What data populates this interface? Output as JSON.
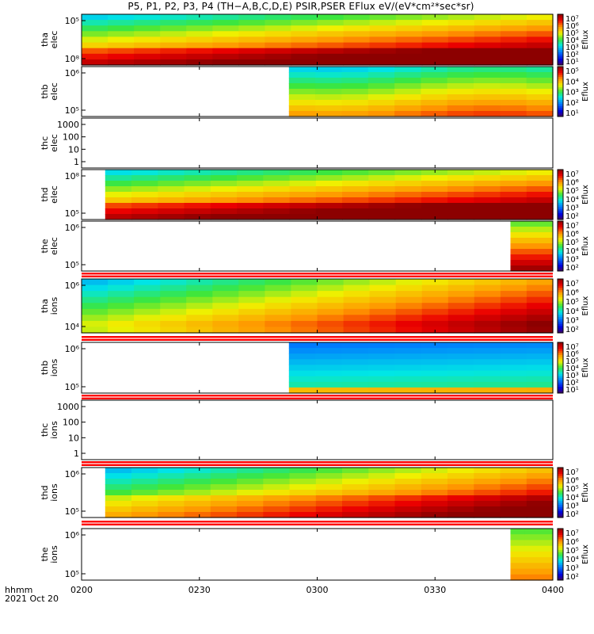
{
  "title": "P5, P1, P2, P3, P4 (TH−A,B,C,D,E) PSIR,PSER EFlux eV/(eV*cm²*sec*sr)",
  "colorbar_label": "Eflux",
  "x_axis": {
    "row1_label": "hhmm",
    "row2_label": "2021 Oct 20",
    "ticks": [
      "0200",
      "0230",
      "0300",
      "0330",
      "0400"
    ]
  },
  "chart_data": [
    {
      "type": "heatmap",
      "name": "tha elec",
      "ylabel": [
        "tha",
        "elec"
      ],
      "yscale": "log",
      "yticks": [
        "10⁵",
        "10⁸"
      ],
      "cbar_ticks": [
        "10⁷",
        "10⁶",
        "10⁵",
        "10⁴",
        "10³",
        "10²",
        "10¹"
      ],
      "data_start_frac": 0.0,
      "data_end_frac": 1.0,
      "trend": "increasing_to_red",
      "flux_range": [
        10.0,
        10000000.0
      ]
    },
    {
      "type": "heatmap",
      "name": "thb elec",
      "ylabel": [
        "thb",
        "elec"
      ],
      "yscale": "log",
      "yticks": [
        "10⁶",
        "10⁵"
      ],
      "cbar_ticks": [
        "10⁵",
        "10⁴",
        "10³",
        "10²",
        "10¹"
      ],
      "data_start_frac": 0.44,
      "data_end_frac": 1.0,
      "trend": "cyan_green_top_orange_bottom",
      "flux_range": [
        10.0,
        100000.0
      ]
    },
    {
      "type": "heatmap",
      "name": "thc elec",
      "ylabel": [
        "thc",
        "elec"
      ],
      "yscale": "log",
      "yticks": [
        "1000",
        "100",
        "10",
        "1"
      ],
      "cbar_ticks": [],
      "empty": true
    },
    {
      "type": "heatmap",
      "name": "thd elec",
      "ylabel": [
        "thd",
        "elec"
      ],
      "yscale": "log",
      "yticks": [
        "10⁸",
        "10⁵"
      ],
      "cbar_ticks": [
        "10⁷",
        "10⁶",
        "10⁵",
        "10⁴",
        "10³",
        "10²"
      ],
      "data_start_frac": 0.05,
      "data_end_frac": 1.0,
      "trend": "increasing_to_red",
      "flux_range": [
        100.0,
        10000000.0
      ]
    },
    {
      "type": "heatmap",
      "name": "the elec",
      "ylabel": [
        "the",
        "elec"
      ],
      "yscale": "log",
      "yticks": [
        "10⁶",
        "10⁵"
      ],
      "cbar_ticks": [
        "10⁷",
        "10⁶",
        "10⁵",
        "10⁴",
        "10³",
        "10²"
      ],
      "data_start_frac": 0.91,
      "data_end_frac": 1.0,
      "trend": "red",
      "flux_range": [
        100.0,
        10000000.0
      ]
    },
    {
      "type": "heatmap",
      "name": "tha ions",
      "ylabel": [
        "tha",
        "ions"
      ],
      "yscale": "log",
      "yticks": [
        "10⁶",
        "10⁴"
      ],
      "cbar_ticks": [
        "10⁷",
        "10⁶",
        "10⁵",
        "10⁴",
        "10³",
        "10²"
      ],
      "data_start_frac": 0.0,
      "data_end_frac": 1.0,
      "trend": "green_to_red",
      "flux_range": [
        100.0,
        10000000.0
      ]
    },
    {
      "type": "heatmap",
      "name": "thb ions",
      "ylabel": [
        "thb",
        "ions"
      ],
      "yscale": "log",
      "yticks": [
        "10⁶",
        "10⁵"
      ],
      "cbar_ticks": [
        "10⁷",
        "10⁶",
        "10⁵",
        "10⁴",
        "10³",
        "10²",
        "10¹"
      ],
      "data_start_frac": 0.44,
      "data_end_frac": 1.0,
      "trend": "blue_cyan",
      "flux_range": [
        10.0,
        10000000.0
      ]
    },
    {
      "type": "heatmap",
      "name": "thc ions",
      "ylabel": [
        "thc",
        "ions"
      ],
      "yscale": "log",
      "yticks": [
        "1000",
        "100",
        "10",
        "1"
      ],
      "cbar_ticks": [],
      "empty": true
    },
    {
      "type": "heatmap",
      "name": "thd ions",
      "ylabel": [
        "thd",
        "ions"
      ],
      "yscale": "log",
      "yticks": [
        "10⁶",
        "10⁵"
      ],
      "cbar_ticks": [
        "10⁷",
        "10⁶",
        "10⁵",
        "10⁴",
        "10³",
        "10²"
      ],
      "data_start_frac": 0.05,
      "data_end_frac": 1.0,
      "trend": "yellow_to_darkred",
      "flux_range": [
        100.0,
        10000000.0
      ]
    },
    {
      "type": "heatmap",
      "name": "the ions",
      "ylabel": [
        "the",
        "ions"
      ],
      "yscale": "log",
      "yticks": [
        "10⁶",
        "10⁵"
      ],
      "cbar_ticks": [
        "10⁷",
        "10⁶",
        "10⁵",
        "10⁴",
        "10³",
        "10²"
      ],
      "data_start_frac": 0.91,
      "data_end_frac": 1.0,
      "trend": "orange",
      "flux_range": [
        100.0,
        10000000.0
      ]
    }
  ]
}
